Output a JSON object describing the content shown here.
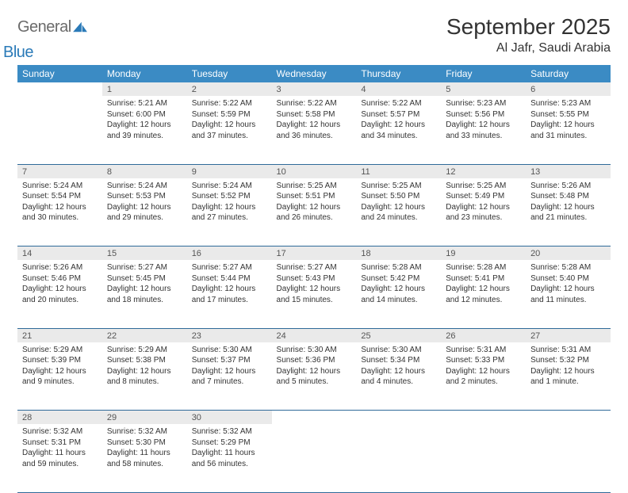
{
  "brand": {
    "word1": "General",
    "word2": "Blue"
  },
  "title": "September 2025",
  "location": "Al Jafr, Saudi Arabia",
  "colors": {
    "header_bg": "#3b8bc4",
    "header_fg": "#ffffff",
    "daynum_bg": "#eaeaea",
    "daynum_fg": "#555555",
    "rule": "#2f6a99",
    "brand_gray": "#6b6b6b",
    "brand_blue": "#2a7ab8",
    "text": "#333333"
  },
  "typography": {
    "title_fontsize": 28,
    "location_fontsize": 16,
    "weekday_fontsize": 12,
    "daynum_fontsize": 11,
    "cell_fontsize": 10
  },
  "weekdays": [
    "Sunday",
    "Monday",
    "Tuesday",
    "Wednesday",
    "Thursday",
    "Friday",
    "Saturday"
  ],
  "weeks": [
    [
      null,
      {
        "n": "1",
        "sr": "5:21 AM",
        "ss": "6:00 PM",
        "dl": "12 hours and 39 minutes."
      },
      {
        "n": "2",
        "sr": "5:22 AM",
        "ss": "5:59 PM",
        "dl": "12 hours and 37 minutes."
      },
      {
        "n": "3",
        "sr": "5:22 AM",
        "ss": "5:58 PM",
        "dl": "12 hours and 36 minutes."
      },
      {
        "n": "4",
        "sr": "5:22 AM",
        "ss": "5:57 PM",
        "dl": "12 hours and 34 minutes."
      },
      {
        "n": "5",
        "sr": "5:23 AM",
        "ss": "5:56 PM",
        "dl": "12 hours and 33 minutes."
      },
      {
        "n": "6",
        "sr": "5:23 AM",
        "ss": "5:55 PM",
        "dl": "12 hours and 31 minutes."
      }
    ],
    [
      {
        "n": "7",
        "sr": "5:24 AM",
        "ss": "5:54 PM",
        "dl": "12 hours and 30 minutes."
      },
      {
        "n": "8",
        "sr": "5:24 AM",
        "ss": "5:53 PM",
        "dl": "12 hours and 29 minutes."
      },
      {
        "n": "9",
        "sr": "5:24 AM",
        "ss": "5:52 PM",
        "dl": "12 hours and 27 minutes."
      },
      {
        "n": "10",
        "sr": "5:25 AM",
        "ss": "5:51 PM",
        "dl": "12 hours and 26 minutes."
      },
      {
        "n": "11",
        "sr": "5:25 AM",
        "ss": "5:50 PM",
        "dl": "12 hours and 24 minutes."
      },
      {
        "n": "12",
        "sr": "5:25 AM",
        "ss": "5:49 PM",
        "dl": "12 hours and 23 minutes."
      },
      {
        "n": "13",
        "sr": "5:26 AM",
        "ss": "5:48 PM",
        "dl": "12 hours and 21 minutes."
      }
    ],
    [
      {
        "n": "14",
        "sr": "5:26 AM",
        "ss": "5:46 PM",
        "dl": "12 hours and 20 minutes."
      },
      {
        "n": "15",
        "sr": "5:27 AM",
        "ss": "5:45 PM",
        "dl": "12 hours and 18 minutes."
      },
      {
        "n": "16",
        "sr": "5:27 AM",
        "ss": "5:44 PM",
        "dl": "12 hours and 17 minutes."
      },
      {
        "n": "17",
        "sr": "5:27 AM",
        "ss": "5:43 PM",
        "dl": "12 hours and 15 minutes."
      },
      {
        "n": "18",
        "sr": "5:28 AM",
        "ss": "5:42 PM",
        "dl": "12 hours and 14 minutes."
      },
      {
        "n": "19",
        "sr": "5:28 AM",
        "ss": "5:41 PM",
        "dl": "12 hours and 12 minutes."
      },
      {
        "n": "20",
        "sr": "5:28 AM",
        "ss": "5:40 PM",
        "dl": "12 hours and 11 minutes."
      }
    ],
    [
      {
        "n": "21",
        "sr": "5:29 AM",
        "ss": "5:39 PM",
        "dl": "12 hours and 9 minutes."
      },
      {
        "n": "22",
        "sr": "5:29 AM",
        "ss": "5:38 PM",
        "dl": "12 hours and 8 minutes."
      },
      {
        "n": "23",
        "sr": "5:30 AM",
        "ss": "5:37 PM",
        "dl": "12 hours and 7 minutes."
      },
      {
        "n": "24",
        "sr": "5:30 AM",
        "ss": "5:36 PM",
        "dl": "12 hours and 5 minutes."
      },
      {
        "n": "25",
        "sr": "5:30 AM",
        "ss": "5:34 PM",
        "dl": "12 hours and 4 minutes."
      },
      {
        "n": "26",
        "sr": "5:31 AM",
        "ss": "5:33 PM",
        "dl": "12 hours and 2 minutes."
      },
      {
        "n": "27",
        "sr": "5:31 AM",
        "ss": "5:32 PM",
        "dl": "12 hours and 1 minute."
      }
    ],
    [
      {
        "n": "28",
        "sr": "5:32 AM",
        "ss": "5:31 PM",
        "dl": "11 hours and 59 minutes."
      },
      {
        "n": "29",
        "sr": "5:32 AM",
        "ss": "5:30 PM",
        "dl": "11 hours and 58 minutes."
      },
      {
        "n": "30",
        "sr": "5:32 AM",
        "ss": "5:29 PM",
        "dl": "11 hours and 56 minutes."
      },
      null,
      null,
      null,
      null
    ]
  ],
  "labels": {
    "sunrise": "Sunrise:",
    "sunset": "Sunset:",
    "daylight": "Daylight:"
  }
}
